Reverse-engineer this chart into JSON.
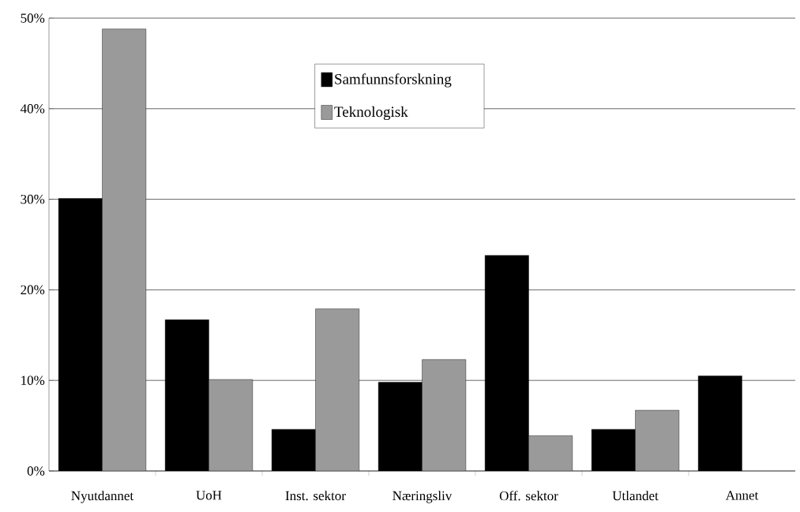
{
  "chart_data": {
    "type": "bar",
    "categories": [
      "Nyutdannet",
      "UoH",
      "Inst. sektor",
      "Næringsliv",
      "Off. sektor",
      "Utlandet",
      "Annet"
    ],
    "series": [
      {
        "name": "Samfunnsforskning",
        "color": "#000000",
        "values": [
          30.1,
          16.7,
          4.6,
          9.8,
          23.8,
          4.6,
          10.5
        ]
      },
      {
        "name": "Teknologisk",
        "color": "#9a9a9a",
        "values": [
          48.8,
          10.1,
          17.9,
          12.3,
          3.9,
          6.7,
          null
        ]
      }
    ],
    "ylim": [
      0,
      50
    ],
    "yticks": [
      {
        "value": 0,
        "label": "0%"
      },
      {
        "value": 10,
        "label": "10%"
      },
      {
        "value": 20,
        "label": "20%"
      },
      {
        "value": 30,
        "label": "30%"
      },
      {
        "value": 40,
        "label": "40%"
      },
      {
        "value": 50,
        "label": "50%"
      }
    ],
    "grid": "y",
    "legend": "top"
  }
}
